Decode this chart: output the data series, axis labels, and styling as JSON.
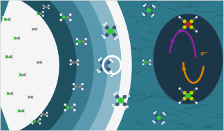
{
  "bg_color": "#2e7a8c",
  "left_bg": "#f5f5f5",
  "arc1_color": "#8ab8c8",
  "arc2_color": "#5a9ab0",
  "arc3_color": "#3a7a90",
  "center_dark": "#1e5060",
  "right_bg": "#236070",
  "texture_color": "#1a5060",
  "ellipse_color": "#1a3040",
  "arrow_white": "#ffffff",
  "arrow_purple": "#9020a0",
  "arrow_orange": "#e08000",
  "electron_label": "e⁻",
  "mol_green": "#30cc30",
  "mol_gray": "#888888",
  "mol_white": "#eeeeee",
  "mol_blue_dark": "#3a5a7a",
  "mol_blue": "#5577aa",
  "mol_yellow": "#cccc00",
  "mol_red": "#bb2222",
  "mol_dark": "#223344",
  "bond_color": "#555566",
  "frame_color": "#dddddd",
  "figw": 3.24,
  "figh": 1.89,
  "dpi": 100
}
